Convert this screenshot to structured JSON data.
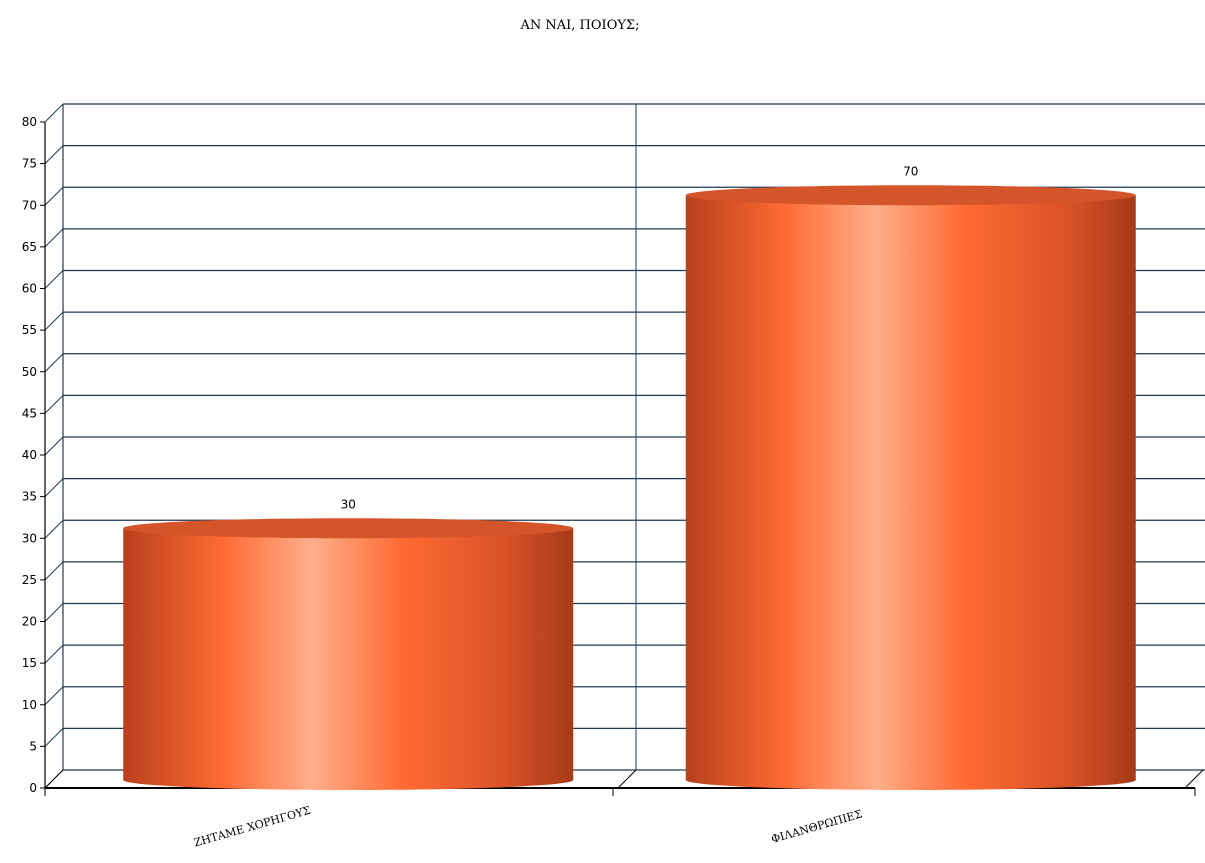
{
  "chart_data": {
    "type": "bar",
    "style": "3d-cylinder",
    "title": "ΑΝ ΝΑΙ, ΠΟΙΟΥΣ;",
    "categories": [
      "ΖΗΤΑΜΕ ΧΟΡΗΓΟΥΣ",
      "ΦΙΛΑΝΘΡΩΠΙΕΣ"
    ],
    "values": [
      30,
      70
    ],
    "xlabel": "",
    "ylabel": "",
    "ylim": [
      0,
      80
    ],
    "ytick_step": 5,
    "grid": true,
    "legend": "none",
    "colors": {
      "bar_dark": "#b8401c",
      "bar_mid": "#ff6a33",
      "bar_light": "#ffae8a",
      "bar_top": "#d4552a",
      "grid": "#1f3a55",
      "axis": "#000000"
    }
  }
}
